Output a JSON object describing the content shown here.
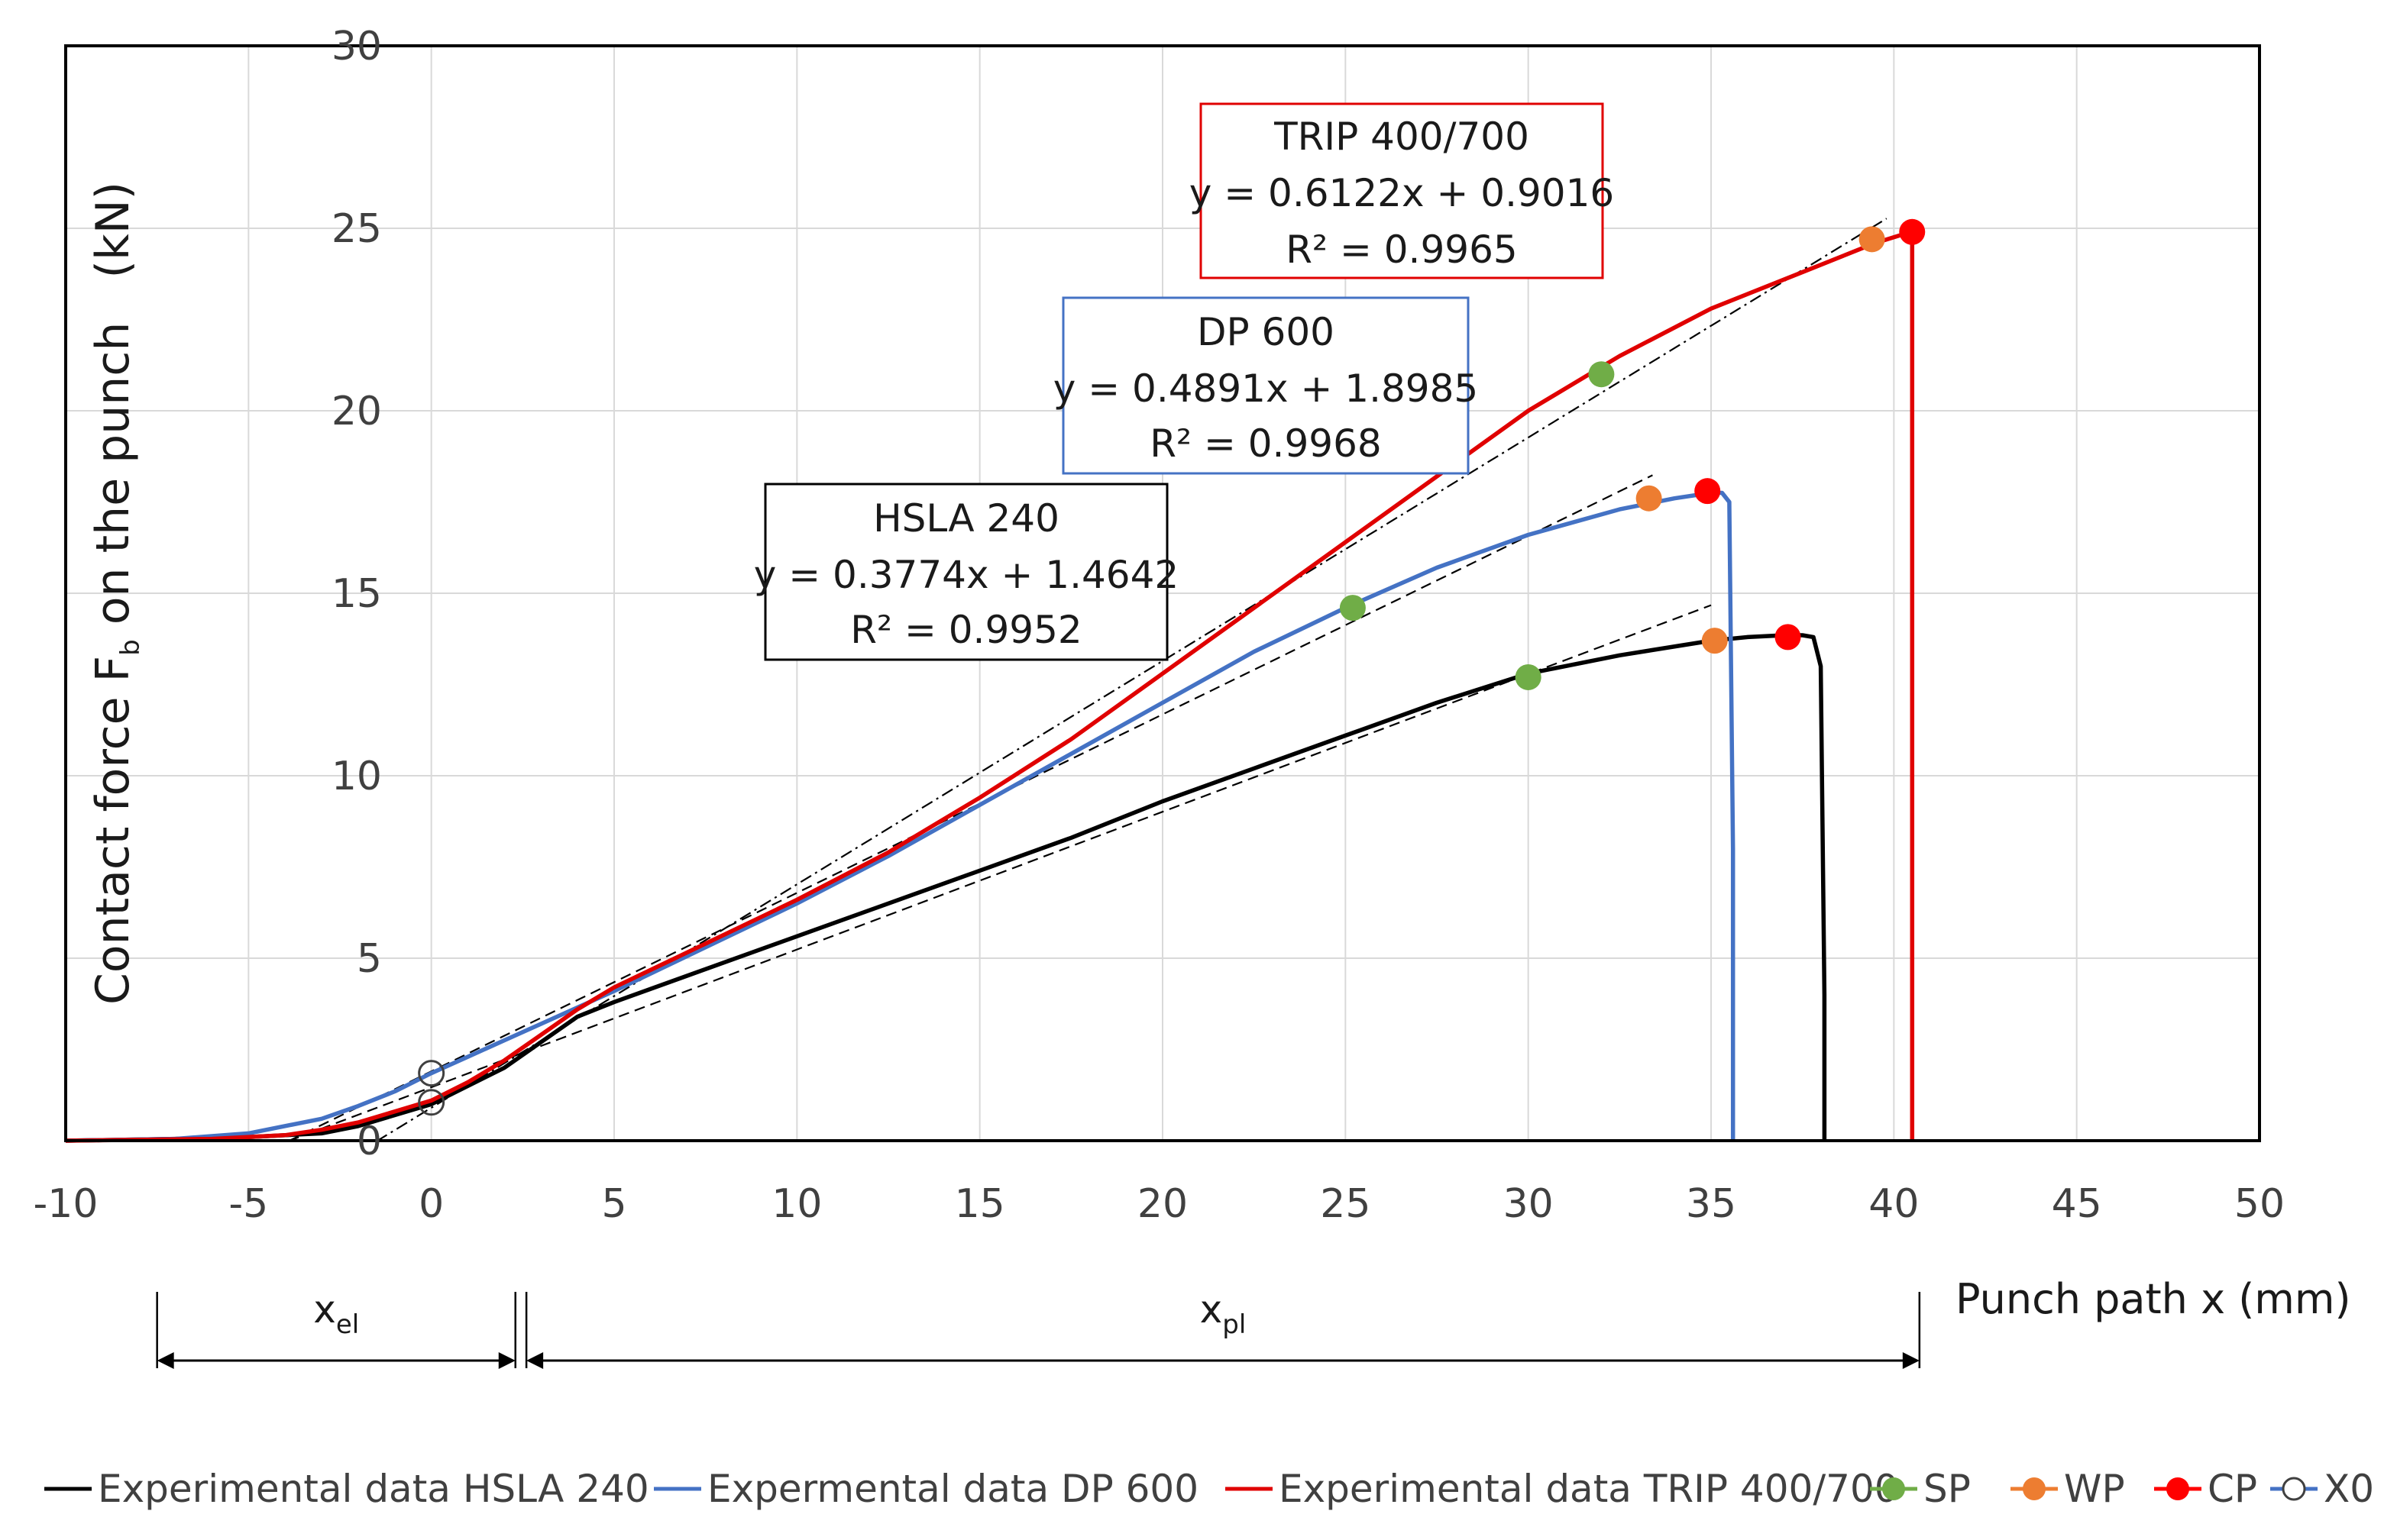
{
  "chart_data": {
    "type": "line",
    "title": "",
    "xlabel": "Punch path x (mm)",
    "ylabel": "Contact force F",
    "ylabel_subscript": "b",
    "ylabel_suffix": " on the punch   (kN)",
    "xlim": [
      -10,
      50
    ],
    "ylim": [
      0,
      30
    ],
    "x_ticks": [
      "-10",
      "-5",
      "0",
      "5",
      "10",
      "15",
      "20",
      "25",
      "30",
      "35",
      "40",
      "45",
      "50"
    ],
    "y_ticks": [
      "0",
      "5",
      "10",
      "15",
      "20",
      "25",
      "30"
    ],
    "grid": true,
    "series": [
      {
        "name": "Experimental data HSLA 240",
        "color": "#000000",
        "x": [
          -10,
          -7,
          -5,
          -3,
          -2,
          -1,
          0,
          1,
          2,
          3,
          4,
          5,
          7.5,
          10,
          12.5,
          15,
          17.5,
          20,
          22.5,
          25,
          27.5,
          30,
          32.5,
          35,
          36,
          37,
          37.5,
          37.8,
          38.0,
          38.1,
          38.1
        ],
        "y": [
          0,
          0.05,
          0.1,
          0.2,
          0.4,
          0.7,
          1.0,
          1.5,
          2.0,
          2.7,
          3.4,
          3.8,
          4.7,
          5.6,
          6.5,
          7.4,
          8.3,
          9.3,
          10.2,
          11.1,
          12.0,
          12.8,
          13.3,
          13.7,
          13.8,
          13.85,
          13.85,
          13.8,
          13.0,
          4.0,
          0
        ]
      },
      {
        "name": "Expermental data DP 600",
        "color": "#4472C4",
        "x": [
          -10,
          -7,
          -5,
          -3,
          -2,
          -1,
          0,
          1,
          2,
          3,
          5,
          7.5,
          10,
          12.5,
          15,
          17.5,
          20,
          22.5,
          25,
          27.5,
          30,
          32.5,
          34,
          35,
          35.3,
          35.5,
          35.6,
          35.6
        ],
        "y": [
          0,
          0.05,
          0.2,
          0.6,
          0.95,
          1.35,
          1.85,
          2.3,
          2.75,
          3.2,
          4.1,
          5.3,
          6.5,
          7.8,
          9.2,
          10.6,
          12.0,
          13.4,
          14.6,
          15.7,
          16.6,
          17.3,
          17.6,
          17.75,
          17.75,
          17.5,
          8.0,
          0
        ]
      },
      {
        "name": "Experimental data TRIP 400/700",
        "color": "#E00000",
        "x": [
          -10,
          -6,
          -4,
          -3,
          -2,
          -1,
          0,
          1,
          2,
          3,
          4,
          5,
          7.5,
          10,
          12.5,
          15,
          17.5,
          20,
          22.5,
          25,
          27.5,
          30,
          32.5,
          35,
          37.5,
          39.5,
          40.3,
          40.5,
          40.5
        ],
        "y": [
          0,
          0.05,
          0.15,
          0.3,
          0.5,
          0.8,
          1.1,
          1.6,
          2.2,
          2.9,
          3.6,
          4.2,
          5.4,
          6.6,
          7.9,
          9.4,
          11.0,
          12.8,
          14.6,
          16.4,
          18.2,
          20.0,
          21.5,
          22.8,
          23.8,
          24.6,
          24.85,
          24.85,
          0
        ]
      }
    ],
    "markers": [
      {
        "name": "SP",
        "color": "#70AD47",
        "points": [
          [
            30,
            12.7
          ],
          [
            25.2,
            14.6
          ],
          [
            32,
            21.0
          ]
        ]
      },
      {
        "name": "WP",
        "color": "#ED7D31",
        "points": [
          [
            35.1,
            13.7
          ],
          [
            33.3,
            17.6
          ],
          [
            39.4,
            24.7
          ]
        ]
      },
      {
        "name": "CP",
        "color": "#FF0000",
        "points": [
          [
            37.1,
            13.8
          ],
          [
            34.9,
            17.8
          ],
          [
            40.5,
            24.9
          ]
        ]
      },
      {
        "name": "X0",
        "color": "#404040",
        "hollow": true,
        "points": [
          [
            0,
            1.85
          ],
          [
            0,
            1.05
          ]
        ]
      }
    ],
    "trendlines": [
      {
        "label": "HSLA 240",
        "slope": 0.3774,
        "intercept": 1.4642,
        "x_range": [
          -3.9,
          35
        ],
        "style": "dash",
        "equation": "y = 0.3774x + 1.4642",
        "r2": "R² = 0.9952"
      },
      {
        "label": "DP 600",
        "slope": 0.4891,
        "intercept": 1.8985,
        "x_range": [
          -3.9,
          33.4
        ],
        "style": "dash",
        "equation": "y = 0.4891x + 1.8985",
        "r2": "R² = 0.9968"
      },
      {
        "label": "TRIP 400/700",
        "slope": 0.6122,
        "intercept": 0.9016,
        "x_range": [
          -1.5,
          39.8
        ],
        "style": "dashdot",
        "equation": "y = 0.6122x + 0.9016",
        "r2": "R² = 0.9965"
      }
    ],
    "dimension_labels": [
      {
        "main": "x",
        "sub": "el",
        "from": -7.5,
        "to": 2.3
      },
      {
        "main": "x",
        "sub": "pl",
        "from": 2.6,
        "to": 40.7
      }
    ],
    "legend_position": "bottom"
  },
  "annotations": [
    {
      "title": "TRIP 400/700",
      "equation": "y = 0.6122x + 0.9016",
      "r2": "R² = 0.9965",
      "border_color": "#E00000"
    },
    {
      "title": "DP 600",
      "equation": "y = 0.4891x + 1.8985",
      "r2": "R² = 0.9968",
      "border_color": "#4472C4"
    },
    {
      "title": "HSLA 240",
      "equation": "y = 0.3774x + 1.4642",
      "r2": "R² = 0.9952",
      "border_color": "#000000"
    }
  ]
}
